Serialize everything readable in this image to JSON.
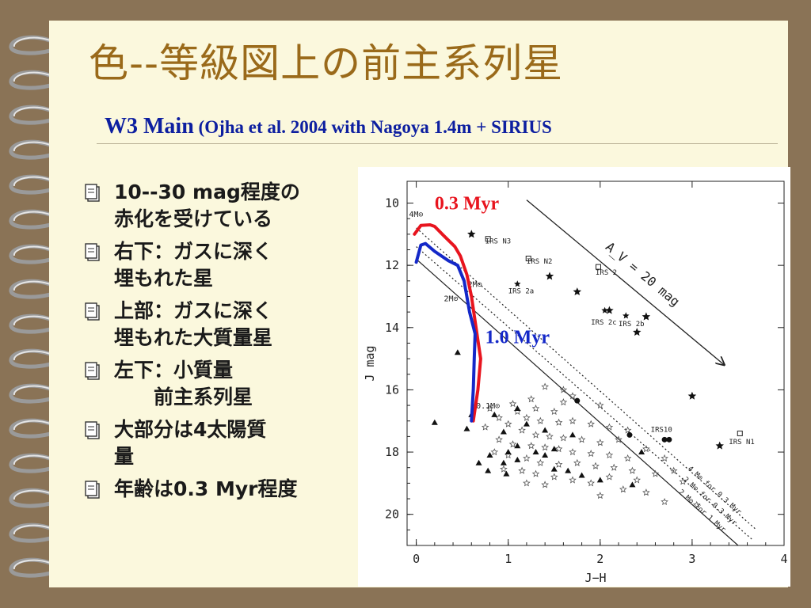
{
  "slide": {
    "title": "色--等級図上の前主系列星",
    "subtitle_main": "W3 Main",
    "subtitle_paren": " (Ojha et al. 2004 with Nagoya 1.4m + SIRIUS"
  },
  "bullets": [
    {
      "text": "10--30 mag程度の\n赤化を受けている"
    },
    {
      "text": "右下：ガスに深く\n埋もれた星"
    },
    {
      "text": "上部：ガスに深く\n埋もれた大質量星"
    },
    {
      "text": "左下：小質量\n　　前主系列星"
    },
    {
      "text": "大部分は4太陽質\n量"
    },
    {
      "text": "年齢は0.3 Myr程度"
    }
  ],
  "colors": {
    "title": "#9a6a1a",
    "subtitle": "#0d1fa0",
    "iso_0_3": "#e8141e",
    "iso_1_0": "#1428c8",
    "background": "#8a7356",
    "paper": "#fbf8dd"
  },
  "chart_data": {
    "type": "scatter",
    "xlabel": "J−H",
    "ylabel": "J mag",
    "xlim": [
      -0.1,
      4
    ],
    "ylim": [
      21,
      9.3
    ],
    "y_inverted": true,
    "x_ticks": [
      0,
      1,
      2,
      3,
      4
    ],
    "y_ticks": [
      10,
      12,
      14,
      16,
      18,
      20
    ],
    "isochrones": [
      {
        "name": "0.3 Myr",
        "color": "#e8141e",
        "points": [
          [
            -0.02,
            11.0
          ],
          [
            0.05,
            10.72
          ],
          [
            0.15,
            10.7
          ],
          [
            0.2,
            10.75
          ],
          [
            0.3,
            11.05
          ],
          [
            0.42,
            11.4
          ],
          [
            0.48,
            11.7
          ],
          [
            0.55,
            12.3
          ],
          [
            0.6,
            13.0
          ],
          [
            0.66,
            14.2
          ],
          [
            0.7,
            15.0
          ],
          [
            0.67,
            16.0
          ],
          [
            0.62,
            17.0
          ]
        ]
      },
      {
        "name": "1.0 Myr",
        "color": "#1428c8",
        "points": [
          [
            0.0,
            11.9
          ],
          [
            0.05,
            11.35
          ],
          [
            0.1,
            11.3
          ],
          [
            0.2,
            11.55
          ],
          [
            0.35,
            11.85
          ],
          [
            0.45,
            12.0
          ],
          [
            0.52,
            12.5
          ],
          [
            0.58,
            13.5
          ],
          [
            0.64,
            14.2
          ],
          [
            0.63,
            15.0
          ],
          [
            0.62,
            16.0
          ],
          [
            0.6,
            17.0
          ]
        ]
      }
    ],
    "reddening_lines": [
      {
        "label": "4 M⊙ for 0.3 Myr",
        "style": "dotted",
        "points": [
          [
            0.0,
            10.8
          ],
          [
            3.7,
            20.5
          ]
        ]
      },
      {
        "label": "2 M⊙ for 0.3 Myr",
        "style": "dotted",
        "points": [
          [
            0.0,
            11.4
          ],
          [
            3.65,
            20.8
          ]
        ]
      },
      {
        "label": "2 M⊙ for 1 Myr",
        "style": "solid",
        "points": [
          [
            0.0,
            11.8
          ],
          [
            3.5,
            21.0
          ]
        ]
      }
    ],
    "reddening_vector": {
      "label": "A_V = 20 mag",
      "from": [
        1.2,
        9.9
      ],
      "to": [
        3.35,
        15.2
      ]
    },
    "mass_labels": [
      {
        "text": "4M⊙",
        "x": -0.08,
        "y": 10.45
      },
      {
        "text": "2M⊙",
        "x": 0.56,
        "y": 12.7
      },
      {
        "text": "2M⊙",
        "x": 0.3,
        "y": 13.15
      },
      {
        "text": "0.1M⊙",
        "x": 0.65,
        "y": 16.6
      }
    ],
    "iso_labels": [
      {
        "text": "0.3 Myr",
        "x": 0.2,
        "y": 10.2,
        "color": "#e8141e"
      },
      {
        "text": "1.0 Myr",
        "x": 0.75,
        "y": 14.5,
        "color": "#1428c8"
      }
    ],
    "irs_sources": [
      {
        "name": "IRS N3",
        "x": 0.75,
        "y": 11.3,
        "px": 0.78,
        "py": 11.15,
        "marker": "square"
      },
      {
        "name": "IRS N2",
        "x": 1.2,
        "y": 11.95,
        "px": 1.22,
        "py": 11.78,
        "marker": "square"
      },
      {
        "name": "IRS 2",
        "x": 1.95,
        "y": 12.3,
        "px": 1.98,
        "py": 12.05,
        "marker": "square"
      },
      {
        "name": "IRS 2a",
        "x": 1.0,
        "y": 12.9,
        "px": 1.1,
        "py": 12.6,
        "marker": "star"
      },
      {
        "name": "IRS 2c",
        "x": 1.9,
        "y": 13.9,
        "px": 2.05,
        "py": 13.45,
        "marker": "star"
      },
      {
        "name": "IRS 2b",
        "x": 2.2,
        "y": 13.95,
        "px": 2.28,
        "py": 13.62,
        "marker": "star"
      },
      {
        "name": "IRS10",
        "x": 2.55,
        "y": 17.35,
        "px": 2.7,
        "py": 17.6,
        "marker": "circle"
      },
      {
        "name": "IRS N1",
        "x": 3.4,
        "y": 17.75,
        "px": 3.52,
        "py": 17.4,
        "marker": "square"
      }
    ],
    "bright_stars": [
      [
        0.6,
        11.0
      ],
      [
        1.45,
        12.35
      ],
      [
        2.1,
        13.45
      ],
      [
        2.5,
        13.65
      ],
      [
        2.4,
        14.15
      ],
      [
        1.75,
        12.85
      ],
      [
        3.0,
        16.2
      ],
      [
        3.3,
        17.8
      ]
    ],
    "triangles": [
      [
        0.45,
        14.8
      ],
      [
        0.2,
        17.05
      ],
      [
        0.55,
        17.25
      ],
      [
        0.6,
        16.8
      ],
      [
        0.85,
        16.8
      ],
      [
        0.95,
        17.35
      ],
      [
        1.0,
        18.0
      ],
      [
        1.1,
        17.8
      ],
      [
        0.8,
        18.1
      ],
      [
        0.68,
        18.35
      ],
      [
        0.95,
        18.35
      ],
      [
        1.1,
        18.25
      ],
      [
        1.3,
        18.0
      ],
      [
        1.5,
        18.55
      ],
      [
        1.4,
        18.1
      ],
      [
        1.5,
        17.9
      ],
      [
        1.7,
        17.45
      ],
      [
        0.98,
        18.7
      ],
      [
        1.65,
        18.6
      ],
      [
        1.8,
        18.75
      ],
      [
        2.0,
        18.9
      ],
      [
        2.45,
        18.0
      ],
      [
        2.35,
        19.05
      ],
      [
        1.4,
        17.3
      ],
      [
        1.2,
        17.1
      ],
      [
        1.1,
        16.6
      ],
      [
        0.78,
        18.6
      ]
    ],
    "filled_circles": [
      [
        1.75,
        16.35
      ],
      [
        2.32,
        17.45
      ],
      [
        2.75,
        17.6
      ]
    ],
    "open_stars": [
      [
        1.4,
        15.9
      ],
      [
        1.6,
        16.0
      ],
      [
        1.7,
        16.2
      ],
      [
        2.0,
        16.5
      ],
      [
        1.1,
        16.7
      ],
      [
        1.3,
        16.6
      ],
      [
        1.5,
        16.7
      ],
      [
        1.2,
        16.9
      ],
      [
        1.35,
        17.0
      ],
      [
        1.55,
        17.05
      ],
      [
        1.7,
        17.0
      ],
      [
        1.9,
        17.1
      ],
      [
        2.1,
        17.2
      ],
      [
        2.3,
        17.3
      ],
      [
        1.0,
        17.1
      ],
      [
        1.15,
        17.3
      ],
      [
        1.3,
        17.45
      ],
      [
        1.45,
        17.5
      ],
      [
        1.6,
        17.55
      ],
      [
        1.8,
        17.6
      ],
      [
        2.0,
        17.7
      ],
      [
        0.9,
        17.6
      ],
      [
        1.05,
        17.75
      ],
      [
        1.25,
        17.8
      ],
      [
        1.4,
        17.85
      ],
      [
        1.55,
        17.9
      ],
      [
        1.7,
        18.0
      ],
      [
        1.9,
        18.05
      ],
      [
        2.1,
        18.1
      ],
      [
        2.3,
        18.2
      ],
      [
        0.85,
        18.0
      ],
      [
        1.0,
        18.1
      ],
      [
        1.2,
        18.2
      ],
      [
        1.35,
        18.35
      ],
      [
        1.55,
        18.4
      ],
      [
        1.75,
        18.35
      ],
      [
        1.95,
        18.45
      ],
      [
        2.15,
        18.5
      ],
      [
        2.35,
        18.6
      ],
      [
        0.95,
        18.55
      ],
      [
        1.15,
        18.6
      ],
      [
        1.3,
        18.7
      ],
      [
        1.5,
        18.8
      ],
      [
        1.7,
        18.9
      ],
      [
        1.9,
        19.0
      ],
      [
        2.1,
        18.8
      ],
      [
        2.4,
        18.9
      ],
      [
        2.6,
        18.7
      ],
      [
        2.8,
        18.6
      ],
      [
        0.75,
        17.2
      ],
      [
        0.9,
        16.9
      ],
      [
        2.5,
        17.9
      ],
      [
        2.7,
        18.2
      ],
      [
        2.9,
        18.95
      ],
      [
        1.2,
        19.0
      ],
      [
        1.4,
        19.05
      ],
      [
        2.25,
        19.2
      ],
      [
        2.5,
        19.3
      ],
      [
        2.7,
        19.6
      ],
      [
        2.0,
        19.4
      ],
      [
        1.6,
        16.4
      ],
      [
        1.25,
        16.3
      ],
      [
        3.05,
        19.7
      ],
      [
        0.8,
        16.6
      ],
      [
        1.05,
        16.45
      ],
      [
        2.2,
        17.6
      ]
    ]
  }
}
